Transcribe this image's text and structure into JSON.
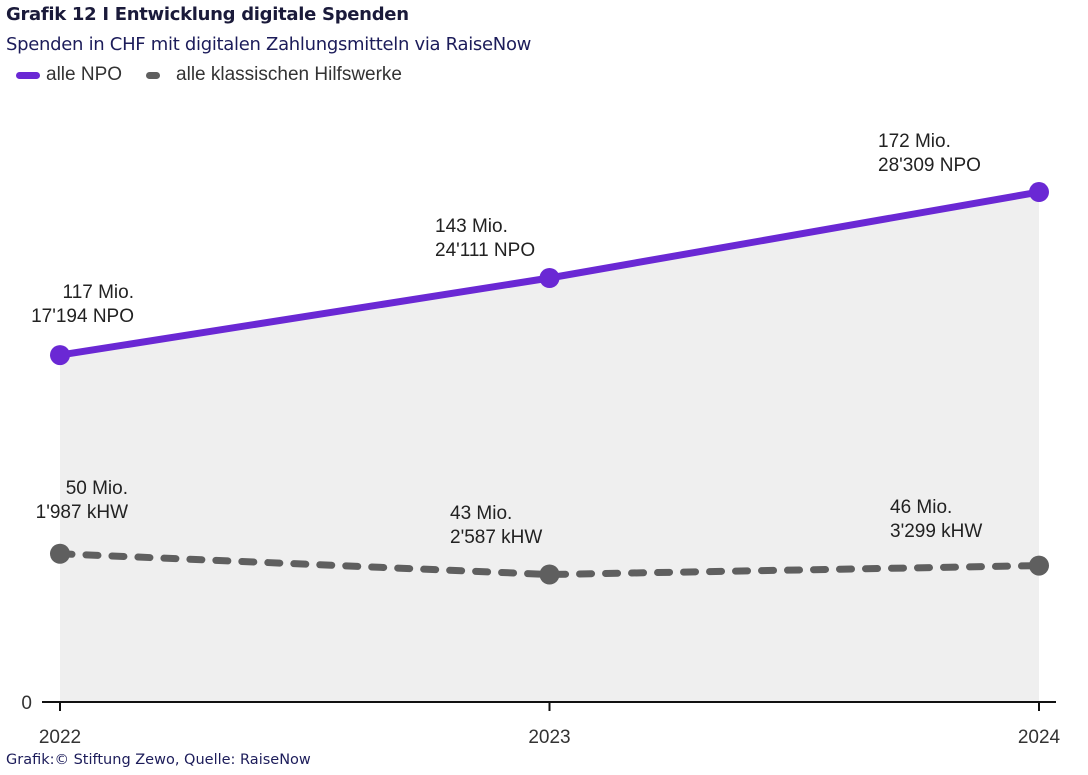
{
  "header": {
    "title": "Grafik 12 I Entwicklung digitale Spenden",
    "subtitle": "Spenden in CHF mit digitalen Zahlungsmitteln via RaiseNow"
  },
  "footer": {
    "source": "Grafik:© Stiftung Zewo, Quelle: RaiseNow"
  },
  "chart_data": {
    "type": "line",
    "title": "Grafik 12 I Entwicklung digitale Spenden",
    "subtitle": "Spenden in CHF mit digitalen Zahlungsmitteln via RaiseNow",
    "xlabel": "",
    "ylabel": "",
    "x": [
      "2022",
      "2023",
      "2024"
    ],
    "ylim": [
      0,
      180
    ],
    "yticks": [
      "0"
    ],
    "grid": false,
    "legend_position": "top-left",
    "series": [
      {
        "name": "alle NPO",
        "style": "solid",
        "color": "#6a28d4",
        "area_fill": "#efefef",
        "values": [
          117,
          143,
          172
        ],
        "labels": [
          [
            "117 Mio.",
            "17'194 NPO"
          ],
          [
            "143 Mio.",
            "24'111 NPO"
          ],
          [
            "172 Mio.",
            "28'309 NPO"
          ]
        ]
      },
      {
        "name": "alle klassischen Hilfswerke",
        "style": "dashed",
        "color": "#5f5f5f",
        "values": [
          50,
          43,
          46
        ],
        "labels": [
          [
            "50 Mio.",
            "1'987 kHW"
          ],
          [
            "43 Mio.",
            "2'587 kHW"
          ],
          [
            "46 Mio.",
            "3'299 kHW"
          ]
        ]
      }
    ]
  }
}
